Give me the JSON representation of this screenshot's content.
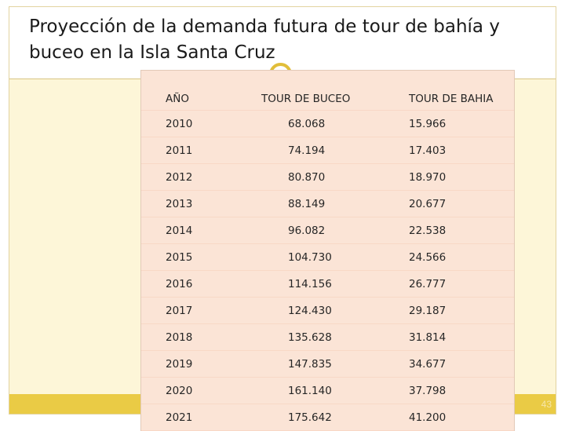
{
  "slide": {
    "title": "Proyección de la demanda futura de tour de bahía y buceo en  la Isla Santa Cruz",
    "page_number": "43",
    "colors": {
      "content_bg": "#fdf6d8",
      "footer": "#eacb45",
      "table_bg": "#fbe4d6",
      "accent": "#e1be3a"
    }
  },
  "table": {
    "headers": [
      "AÑO",
      "TOUR DE BUCEO",
      "TOUR DE BAHIA"
    ],
    "rows": [
      [
        "2010",
        "68.068",
        "15.966"
      ],
      [
        "2011",
        "74.194",
        "17.403"
      ],
      [
        "2012",
        "80.870",
        "18.970"
      ],
      [
        "2013",
        "88.149",
        "20.677"
      ],
      [
        "2014",
        "96.082",
        "22.538"
      ],
      [
        "2015",
        "104.730",
        "24.566"
      ],
      [
        "2016",
        "114.156",
        "26.777"
      ],
      [
        "2017",
        "124.430",
        "29.187"
      ],
      [
        "2018",
        "135.628",
        "31.814"
      ],
      [
        "2019",
        "147.835",
        "34.677"
      ],
      [
        "2020",
        "161.140",
        "37.798"
      ],
      [
        "2021",
        "175.642",
        "41.200"
      ]
    ]
  }
}
